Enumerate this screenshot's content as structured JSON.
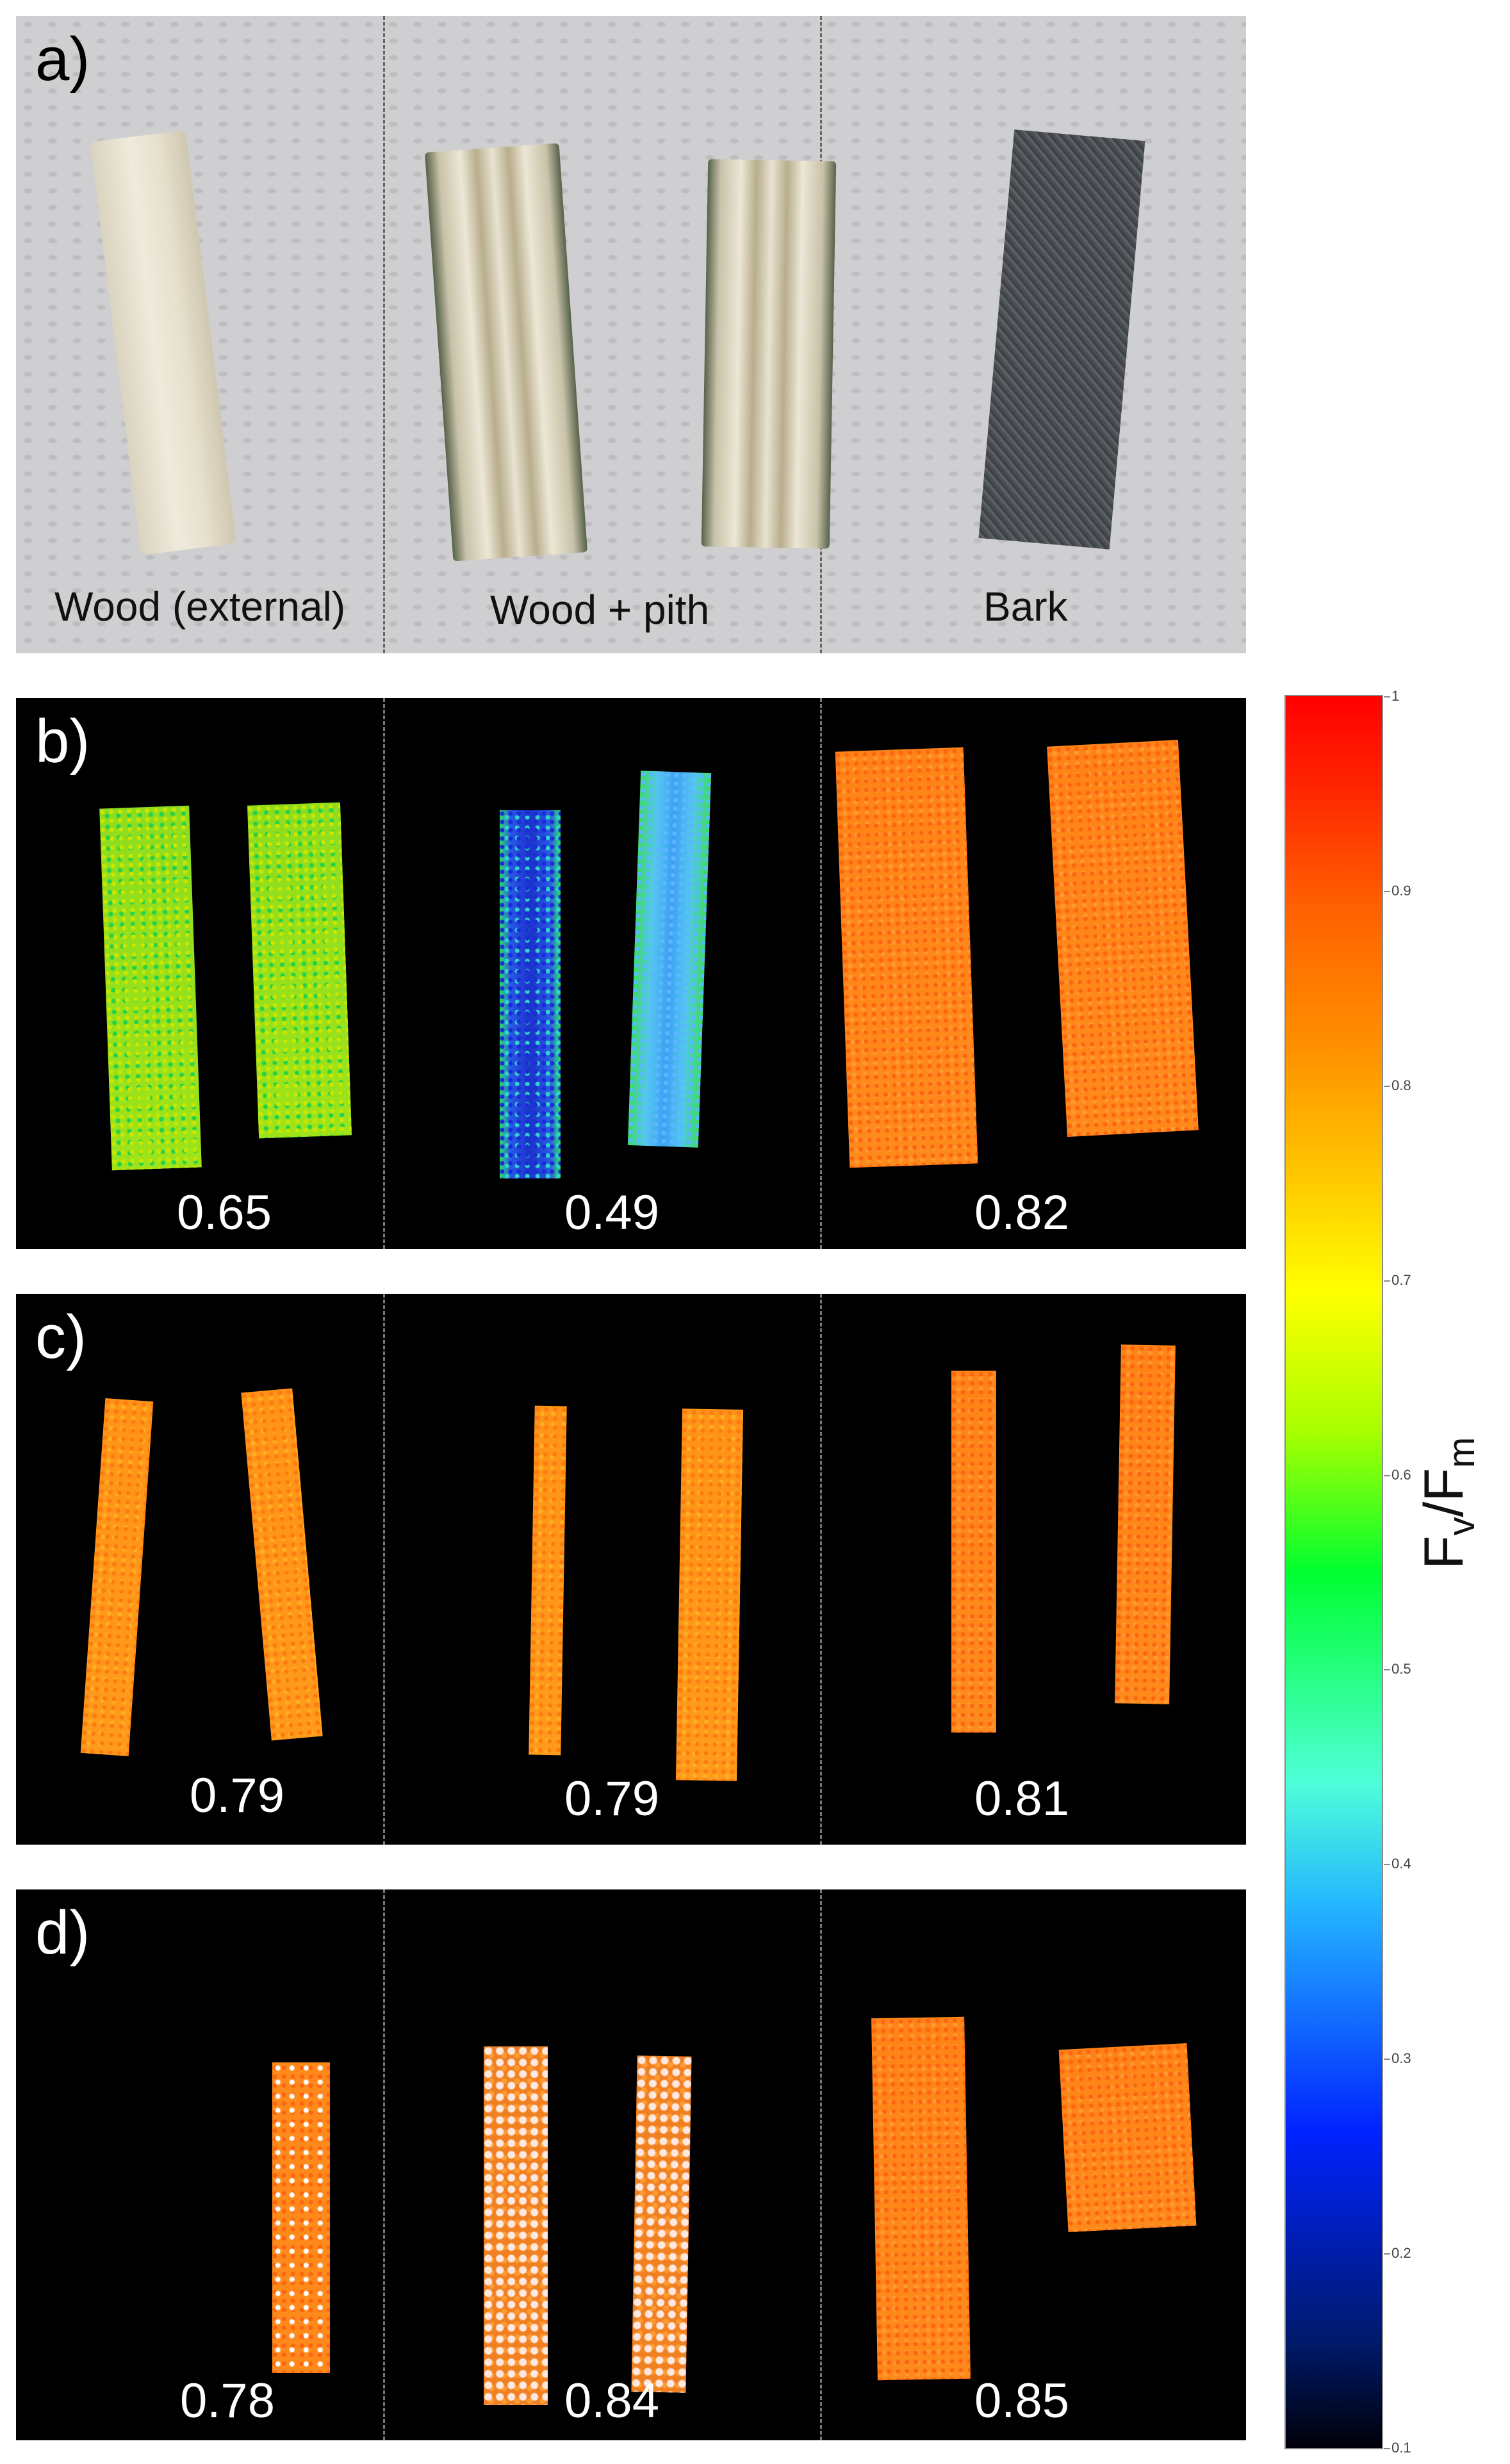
{
  "panels": {
    "a": {
      "label": "a)",
      "captions": [
        "Wood (external)",
        "Wood + pith",
        "Bark"
      ]
    },
    "b": {
      "label": "b)",
      "values": [
        "0.65",
        "0.49",
        "0.82"
      ]
    },
    "c": {
      "label": "c)",
      "values": [
        "0.79",
        "0.79",
        "0.81"
      ]
    },
    "d": {
      "label": "d)",
      "values": [
        "0.78",
        "0.84",
        "0.85"
      ]
    }
  },
  "colorbar": {
    "title_main_1": "F",
    "title_sub_1": "v",
    "title_sep": "/F",
    "title_sub_2": "m",
    "ticks": [
      "1",
      "0.9",
      "0.8",
      "0.7",
      "0.6",
      "0.5",
      "0.4",
      "0.3",
      "0.2",
      "0.1"
    ],
    "range": [
      0.1,
      1
    ]
  }
}
